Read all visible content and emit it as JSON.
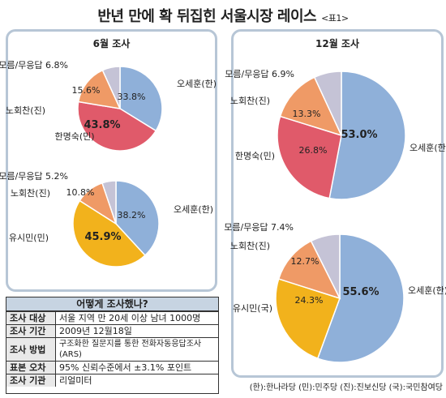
{
  "header": {
    "title": "반년 만에 확 뒤집힌 서울시장 레이스",
    "subtitle": "<표1>"
  },
  "panels": {
    "june": {
      "title": "6월 조사"
    },
    "dec": {
      "title": "12월 조사"
    }
  },
  "chart_data": [
    {
      "type": "pie",
      "panel": "6월 조사",
      "slices": [
        {
          "label": "오세훈(한)",
          "value": 33.8,
          "value_label": "33.8%",
          "color": "#8fb0d9"
        },
        {
          "label": "한명숙(민)",
          "value": 43.8,
          "value_label": "43.8%",
          "color": "#e05a6a"
        },
        {
          "label": "노회찬(진)",
          "value": 15.6,
          "value_label": "15.6%",
          "color": "#ef9a66"
        },
        {
          "label": "모름/무응답",
          "value": 6.8,
          "value_label": "6.8%",
          "color": "#c5c3d6"
        }
      ]
    },
    {
      "type": "pie",
      "panel": "6월 조사",
      "slices": [
        {
          "label": "오세훈(한)",
          "value": 38.2,
          "value_label": "38.2%",
          "color": "#8fb0d9"
        },
        {
          "label": "유시민(민)",
          "value": 45.9,
          "value_label": "45.9%",
          "color": "#f2b21c"
        },
        {
          "label": "노회찬(진)",
          "value": 10.8,
          "value_label": "10.8%",
          "color": "#ef9a66"
        },
        {
          "label": "모름/무응답",
          "value": 5.2,
          "value_label": "5.2%",
          "color": "#c5c3d6"
        }
      ]
    },
    {
      "type": "pie",
      "panel": "12월 조사",
      "slices": [
        {
          "label": "오세훈(한)",
          "value": 53.0,
          "value_label": "53.0%",
          "color": "#8fb0d9"
        },
        {
          "label": "한명숙(민)",
          "value": 26.8,
          "value_label": "26.8%",
          "color": "#e05a6a"
        },
        {
          "label": "노회찬(진)",
          "value": 13.3,
          "value_label": "13.3%",
          "color": "#ef9a66"
        },
        {
          "label": "모름/무응답",
          "value": 6.9,
          "value_label": "6.9%",
          "color": "#c5c3d6"
        }
      ]
    },
    {
      "type": "pie",
      "panel": "12월 조사",
      "slices": [
        {
          "label": "오세훈(한)",
          "value": 55.6,
          "value_label": "55.6%",
          "color": "#8fb0d9"
        },
        {
          "label": "유시민(국)",
          "value": 24.3,
          "value_label": "24.3%",
          "color": "#f2b21c"
        },
        {
          "label": "노회찬(진)",
          "value": 12.7,
          "value_label": "12.7%",
          "color": "#ef9a66"
        },
        {
          "label": "모름/무응답",
          "value": 7.4,
          "value_label": "7.4%",
          "color": "#c5c3d6"
        }
      ]
    }
  ],
  "survey": {
    "title": "어떻게 조사했나?",
    "rows": [
      {
        "key": "조사 대상",
        "value": "서울 지역 만 20세 이상 남녀 1000명"
      },
      {
        "key": "조사 기간",
        "value": "2009년 12월18일"
      },
      {
        "key": "조사 방법",
        "value": "구조화한 질문지를 통한 전화자동응답조사(ARS)"
      },
      {
        "key": "표본 오차",
        "value": "95% 신뢰수준에서 ±3.1% 포인트"
      },
      {
        "key": "조사 기관",
        "value": "리얼미터"
      }
    ]
  },
  "legend": "(한):한나라당 (민):민주당 (진):진보신당 (국):국민참여당"
}
